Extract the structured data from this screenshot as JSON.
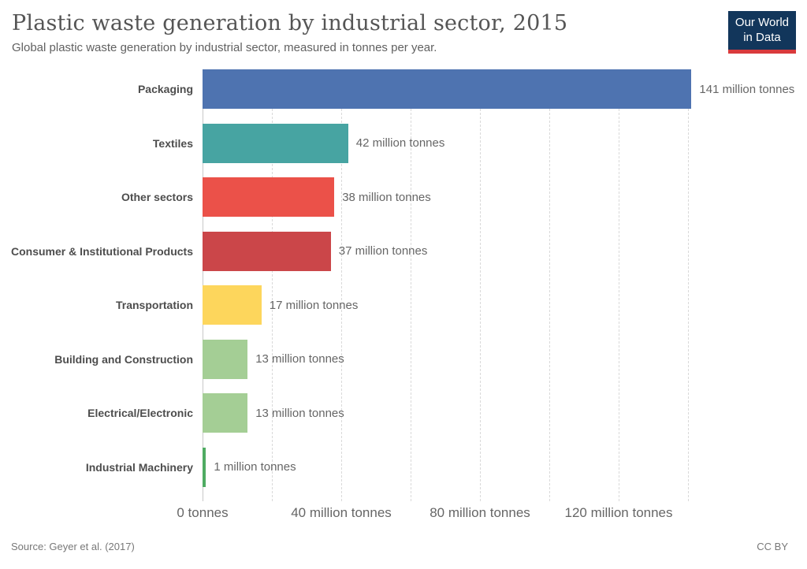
{
  "header": {
    "title": "Plastic waste generation by industrial sector, 2015",
    "subtitle": "Global plastic waste generation by industrial sector, measured in tonnes per year.",
    "logo": {
      "line1": "Our World",
      "line2": "in Data",
      "bg_color": "#12365B",
      "accent_color": "#D93A3C"
    }
  },
  "chart_data": {
    "type": "bar",
    "orientation": "horizontal",
    "unit": "million tonnes",
    "xlim": [
      0,
      160
    ],
    "grid": true,
    "gridline_values": [
      20,
      40,
      60,
      80,
      100,
      120,
      140
    ],
    "x_ticks": [
      {
        "value": 0,
        "label": "0 tonnes"
      },
      {
        "value": 40,
        "label": "40 million tonnes"
      },
      {
        "value": 80,
        "label": "80 million tonnes"
      },
      {
        "value": 120,
        "label": "120 million tonnes"
      }
    ],
    "categories": [
      "Packaging",
      "Textiles",
      "Other sectors",
      "Consumer & Institutional Products",
      "Transportation",
      "Building and Construction",
      "Electrical/Electronic",
      "Industrial Machinery"
    ],
    "values": [
      141,
      42,
      38,
      37,
      17,
      13,
      13,
      1
    ],
    "value_labels": [
      "141 million tonnes",
      "42 million tonnes",
      "38 million tonnes",
      "37 million tonnes",
      "17 million tonnes",
      "13 million tonnes",
      "13 million tonnes",
      "1 million tonnes"
    ],
    "bar_colors": [
      "#4E73B0",
      "#47A4A2",
      "#EB5149",
      "#CB4649",
      "#FDD65C",
      "#A4CE95",
      "#A4CE95",
      "#4FAB62"
    ]
  },
  "footer": {
    "source": "Source: Geyer et al. (2017)",
    "license": "CC BY"
  }
}
